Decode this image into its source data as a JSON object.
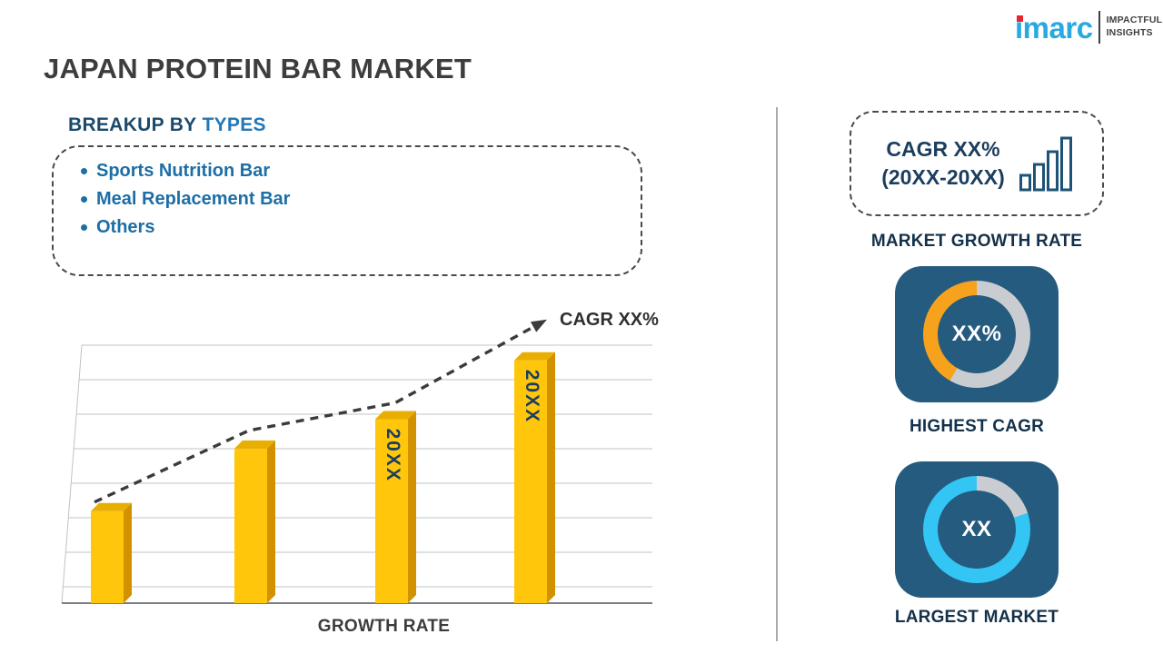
{
  "page": {
    "title": "JAPAN PROTEIN BAR MARKET"
  },
  "logo": {
    "brand": "imarc",
    "tagline": [
      "IMPACTFUL",
      "INSIGHTS"
    ]
  },
  "breakup": {
    "heading_prefix": "BREAKUP BY",
    "heading_highlight": "TYPES",
    "items": [
      "Sports Nutrition Bar",
      "Meal Replacement Bar",
      "Others"
    ]
  },
  "chart_data": {
    "type": "bar",
    "bar_labels": [
      "",
      "",
      "20XX",
      "20XX"
    ],
    "values": [
      25,
      42,
      50,
      66
    ],
    "ylim": [
      0,
      100
    ],
    "xlabel": "GROWTH RATE",
    "trend_label": "CAGR XX%",
    "trend_style": "dashed-arrow",
    "grid": "horizontal"
  },
  "sidebar": {
    "cagr_box": {
      "line1": "CAGR XX%",
      "line2": "(20XX-20XX)"
    },
    "market_growth_rate_label": "MARKET GROWTH RATE",
    "highest_cagr": {
      "value": "XX%",
      "label": "HIGHEST CAGR"
    },
    "largest_market": {
      "value": "XX",
      "label": "LARGEST MARKET"
    }
  },
  "colors": {
    "navy": "#1C3E5E",
    "heading_navy": "#1B4A6B",
    "blue": "#2277B4",
    "list_blue": "#1D6EA5",
    "tile_blue": "#255B7E",
    "ring_gray": "#C9CDD1",
    "orange": "#F6A21D",
    "cyan": "#33C5F3",
    "bar_yellow": "#FFC60B",
    "bar_yellow_top": "#E8AE00",
    "bar_yellow_side": "#D29200",
    "brand_blue": "#2AA9E1",
    "brand_red": "#E8252A",
    "trend_gray": "#3B3B3B"
  }
}
